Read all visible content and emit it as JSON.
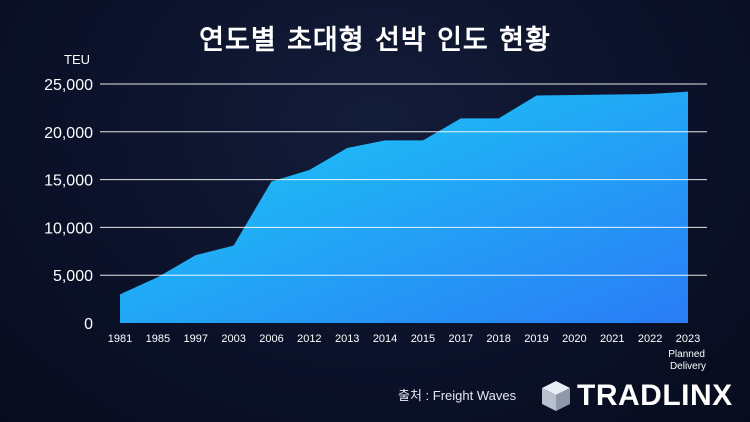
{
  "chart_data": {
    "type": "area",
    "title": "연도별 초대형 선박 인도 현황",
    "ylabel": "TEU",
    "ylim": [
      0,
      25000
    ],
    "yticks": [
      "0",
      "5,000",
      "10,000",
      "15,000",
      "20,000",
      "25,000"
    ],
    "ytick_values": [
      0,
      5000,
      10000,
      15000,
      20000,
      25000
    ],
    "categories": [
      "1981",
      "1985",
      "1997",
      "2003",
      "2006",
      "2012",
      "2013",
      "2014",
      "2015",
      "2017",
      "2018",
      "2019",
      "2020",
      "2021",
      "2022",
      "2023"
    ],
    "values": [
      3000,
      4800,
      7100,
      8100,
      14800,
      16000,
      18300,
      19100,
      19100,
      21400,
      21400,
      23800,
      23850,
      23900,
      23950,
      24200
    ],
    "annotations": {
      "last_label": "Planned\nDelivery"
    },
    "grid": true,
    "colors": {
      "area_top": "#1ad0f5",
      "area_bottom": "#2a7cf6",
      "grid": "#ffffff"
    }
  },
  "footer": {
    "source": "출처 : Freight Waves",
    "brand": "TRADLINX"
  }
}
